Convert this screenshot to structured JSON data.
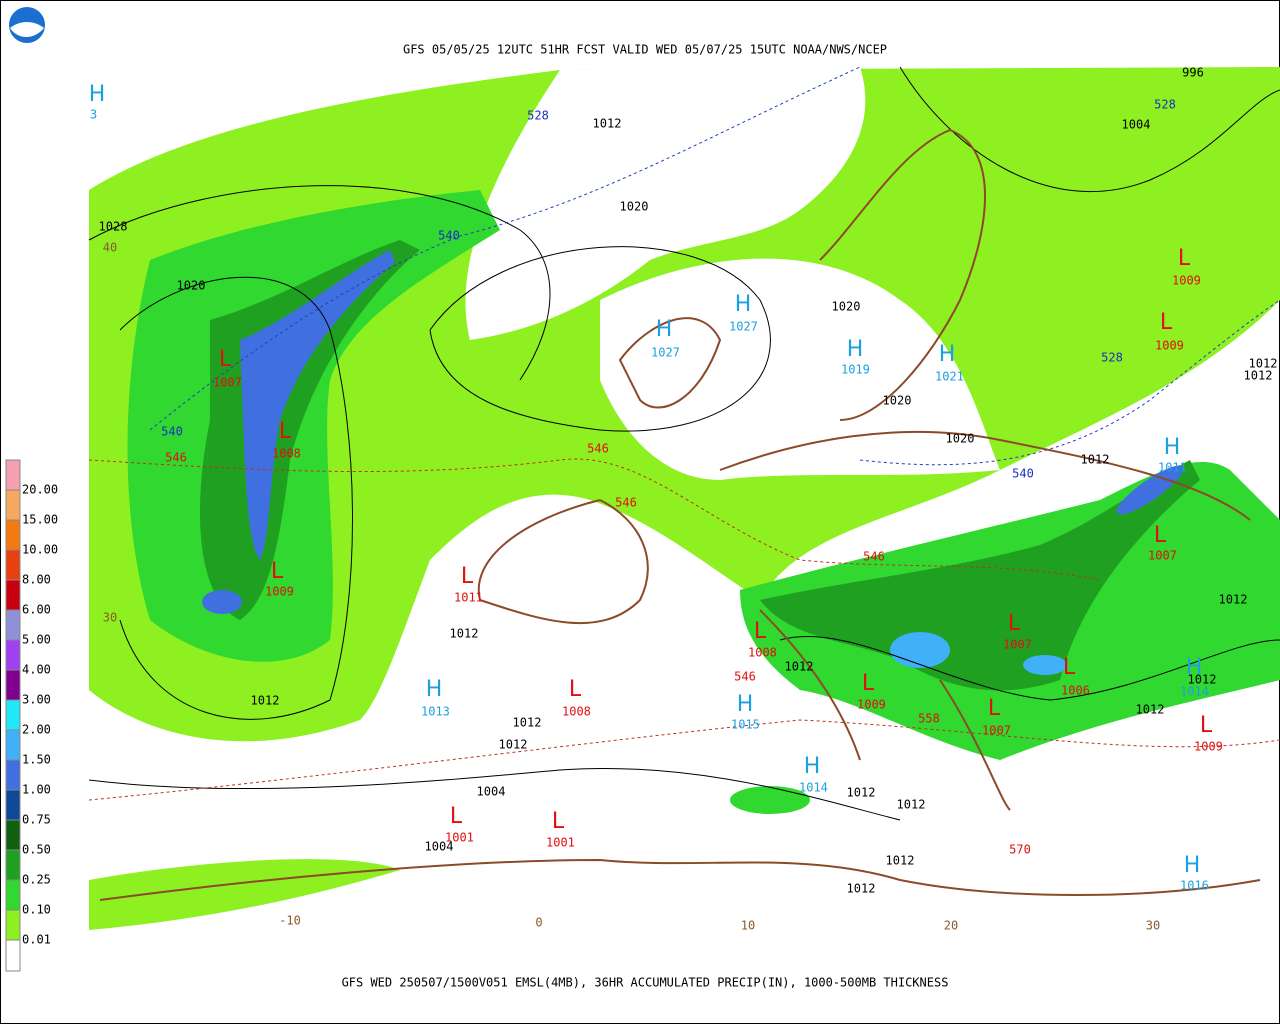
{
  "header": {
    "title": "GFS 05/05/25 12UTC 51HR FCST VALID WED 05/07/25 15UTC NOAA/NWS/NCEP"
  },
  "footer": {
    "text": "GFS WED 250507/1500V051 EMSL(4MB), 36HR ACCUMULATED PRECIP(IN), 1000-500MB THICKNESS"
  },
  "legend": {
    "items": [
      {
        "label": "20.00",
        "color": "#f4a0b0"
      },
      {
        "label": "15.00",
        "color": "#f6a860"
      },
      {
        "label": "10.00",
        "color": "#f47a10"
      },
      {
        "label": "8.00",
        "color": "#e84010"
      },
      {
        "label": "6.00",
        "color": "#c80010"
      },
      {
        "label": "5.00",
        "color": "#9090d8"
      },
      {
        "label": "4.00",
        "color": "#a040f0"
      },
      {
        "label": "3.00",
        "color": "#800090"
      },
      {
        "label": "2.00",
        "color": "#20e8f8"
      },
      {
        "label": "1.50",
        "color": "#40b0f8"
      },
      {
        "label": "1.00",
        "color": "#4070e0"
      },
      {
        "label": "0.75",
        "color": "#104898"
      },
      {
        "label": "0.50",
        "color": "#106010"
      },
      {
        "label": "0.25",
        "color": "#20a020"
      },
      {
        "label": "0.10",
        "color": "#30d830"
      },
      {
        "label": "0.01",
        "color": "#8ef020"
      }
    ]
  },
  "highs": [
    {
      "symbol": "H",
      "value": 3
    },
    {
      "symbol": "H",
      "value": 1027
    },
    {
      "symbol": "H",
      "value": 1027
    },
    {
      "symbol": "H",
      "value": 1019
    },
    {
      "symbol": "H",
      "value": 1021
    },
    {
      "symbol": "H",
      "value": 1013
    },
    {
      "symbol": "H",
      "value": 1015
    },
    {
      "symbol": "H",
      "value": 1014
    },
    {
      "symbol": "H",
      "value": 1011
    },
    {
      "symbol": "H",
      "value": 1014
    },
    {
      "symbol": "H",
      "value": 1016
    }
  ],
  "lows": [
    {
      "symbol": "L",
      "value": 1007
    },
    {
      "symbol": "L",
      "value": 1008
    },
    {
      "symbol": "L",
      "value": 1009
    },
    {
      "symbol": "L",
      "value": 1011
    },
    {
      "symbol": "L",
      "value": 1008
    },
    {
      "symbol": "L",
      "value": 1001
    },
    {
      "symbol": "L",
      "value": 1001
    },
    {
      "symbol": "L",
      "value": 1008
    },
    {
      "symbol": "L",
      "value": 1009
    },
    {
      "symbol": "L",
      "value": 1007
    },
    {
      "symbol": "L",
      "value": 1006
    },
    {
      "symbol": "L",
      "value": 1007
    },
    {
      "symbol": "L",
      "value": 1007
    },
    {
      "symbol": "L",
      "value": 1009
    },
    {
      "symbol": "L",
      "value": 1009
    },
    {
      "symbol": "L",
      "value": 1009
    }
  ],
  "isobar_labels": [
    1028,
    1020,
    1012,
    1020,
    1020,
    1020,
    1020,
    1012,
    1012,
    1012,
    1012,
    1012,
    1012,
    1012,
    1004,
    1004,
    1012,
    1012,
    1012,
    1012,
    1012,
    1012,
    1004,
    996,
    1012,
    1012
  ],
  "thickness_labels_blue": [
    528,
    540,
    540,
    540,
    528,
    528
  ],
  "thickness_labels_red": [
    546,
    546,
    546,
    546,
    546,
    558,
    570
  ],
  "grid_labels": [
    40,
    30,
    -10,
    0,
    10,
    20,
    30
  ]
}
